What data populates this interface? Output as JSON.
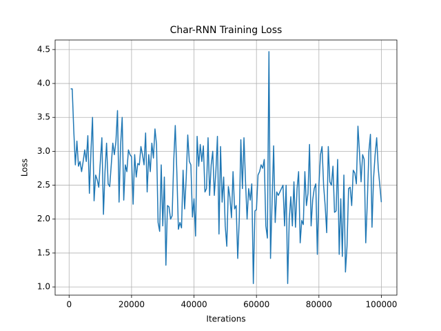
{
  "chart_data": {
    "type": "line",
    "title": "Char-RNN Training Loss",
    "xlabel": "Iterations",
    "ylabel": "Loss",
    "color": "#1f77b4",
    "grid": true,
    "x": [
      500,
      1000,
      1500,
      2000,
      2500,
      3000,
      3500,
      4000,
      4500,
      5000,
      5500,
      6000,
      6500,
      7000,
      7500,
      8000,
      8500,
      9000,
      9500,
      10000,
      10500,
      11000,
      11500,
      12000,
      12500,
      13000,
      13500,
      14000,
      14500,
      15000,
      15500,
      16000,
      16500,
      17000,
      17500,
      18000,
      18500,
      19000,
      19500,
      20000,
      20500,
      21000,
      21500,
      22000,
      22500,
      23000,
      23500,
      24000,
      24500,
      25000,
      25500,
      26000,
      26500,
      27000,
      27500,
      28000,
      28500,
      29000,
      29500,
      30000,
      30500,
      31000,
      31500,
      32000,
      32500,
      33000,
      33500,
      34000,
      34500,
      35000,
      35500,
      36000,
      36500,
      37000,
      37500,
      38000,
      38500,
      39000,
      39500,
      40000,
      40500,
      41000,
      41500,
      42000,
      42500,
      43000,
      43500,
      44000,
      44500,
      45000,
      45500,
      46000,
      46500,
      47000,
      47500,
      48000,
      48500,
      49000,
      49500,
      50000,
      50500,
      51000,
      51500,
      52000,
      52500,
      53000,
      53500,
      54000,
      54500,
      55000,
      55500,
      56000,
      56500,
      57000,
      57500,
      58000,
      58500,
      59000,
      59500,
      60000,
      60500,
      61000,
      61500,
      62000,
      62500,
      63000,
      63500,
      64000,
      64500,
      65000,
      65500,
      66000,
      66500,
      67000,
      67500,
      68000,
      68500,
      69000,
      69500,
      70000,
      70500,
      71000,
      71500,
      72000,
      72500,
      73000,
      73500,
      74000,
      74500,
      75000,
      75500,
      76000,
      76500,
      77000,
      77500,
      78000,
      78500,
      79000,
      79500,
      80000,
      80500,
      81000,
      81500,
      82000,
      82500,
      83000,
      83500,
      84000,
      84500,
      85000,
      85500,
      86000,
      86500,
      87000,
      87500,
      88000,
      88500,
      89000,
      89500,
      90000,
      90500,
      91000,
      91500,
      92000,
      92500,
      93000,
      93500,
      94000,
      94500,
      95000,
      95500,
      96000,
      96500,
      97000,
      97500,
      98000,
      98500,
      99000,
      99500,
      100000
    ],
    "values": [
      3.92,
      3.92,
      3.3,
      2.8,
      3.15,
      2.78,
      2.85,
      2.7,
      2.85,
      3.02,
      2.85,
      3.23,
      2.38,
      3.0,
      3.5,
      2.27,
      2.65,
      2.58,
      2.47,
      2.85,
      3.2,
      2.07,
      2.7,
      3.12,
      2.52,
      2.48,
      2.8,
      3.12,
      2.95,
      3.15,
      3.6,
      2.25,
      3.1,
      3.5,
      2.28,
      2.8,
      2.7,
      3.02,
      2.95,
      2.92,
      2.22,
      2.95,
      2.62,
      2.82,
      2.8,
      3.07,
      2.95,
      2.8,
      3.27,
      2.4,
      2.95,
      2.7,
      3.12,
      2.9,
      3.33,
      3.1,
      1.95,
      1.82,
      2.8,
      1.9,
      2.62,
      1.32,
      2.2,
      2.18,
      2.0,
      2.05,
      2.85,
      3.38,
      2.7,
      1.85,
      1.95,
      1.87,
      2.72,
      2.15,
      2.6,
      3.24,
      2.85,
      2.8,
      2.03,
      2.3,
      1.75,
      3.22,
      2.78,
      3.1,
      2.85,
      3.08,
      2.4,
      2.45,
      3.2,
      2.35,
      2.8,
      3.0,
      2.35,
      2.7,
      3.22,
      1.78,
      3.07,
      2.25,
      2.62,
      1.9,
      1.6,
      2.48,
      2.32,
      2.02,
      2.7,
      2.15,
      2.2,
      1.42,
      2.0,
      3.17,
      2.45,
      3.2,
      2.55,
      2.0,
      2.45,
      2.28,
      2.52,
      1.05,
      2.12,
      2.14,
      2.65,
      2.7,
      2.8,
      2.75,
      2.88,
      1.9,
      1.72,
      4.47,
      1.42,
      2.25,
      3.08,
      1.95,
      2.4,
      2.35,
      2.4,
      2.45,
      2.5,
      1.9,
      2.5,
      1.05,
      2.0,
      2.33,
      1.9,
      2.55,
      1.88,
      2.45,
      2.7,
      1.65,
      1.98,
      1.92,
      2.7,
      2.2,
      2.38,
      3.1,
      1.9,
      2.28,
      2.45,
      2.52,
      1.48,
      2.5,
      2.95,
      3.07,
      2.5,
      2.2,
      1.8,
      3.07,
      2.55,
      2.5,
      2.78,
      2.1,
      2.12,
      2.88,
      1.48,
      2.3,
      1.45,
      2.65,
      1.22,
      1.6,
      2.45,
      2.47,
      2.2,
      2.72,
      2.68,
      2.52,
      3.37,
      2.98,
      2.55,
      2.95,
      2.88,
      1.65,
      2.25,
      3.0,
      3.25,
      1.88,
      2.6,
      2.95,
      3.2,
      2.75,
      2.5,
      2.25
    ],
    "xlim": [
      -4475,
      104975
    ],
    "xticks": [
      0,
      20000,
      40000,
      60000,
      80000,
      100000
    ],
    "ylim": [
      0.879,
      4.641
    ],
    "yticks": [
      {
        "value": 1.0,
        "label": "1.0"
      },
      {
        "value": 1.5,
        "label": "1.5"
      },
      {
        "value": 2.0,
        "label": "2.0"
      },
      {
        "value": 2.5,
        "label": "2.5"
      },
      {
        "value": 3.0,
        "label": "3.0"
      },
      {
        "value": 3.5,
        "label": "3.5"
      },
      {
        "value": 4.0,
        "label": "4.0"
      },
      {
        "value": 4.5,
        "label": "4.5"
      }
    ]
  }
}
